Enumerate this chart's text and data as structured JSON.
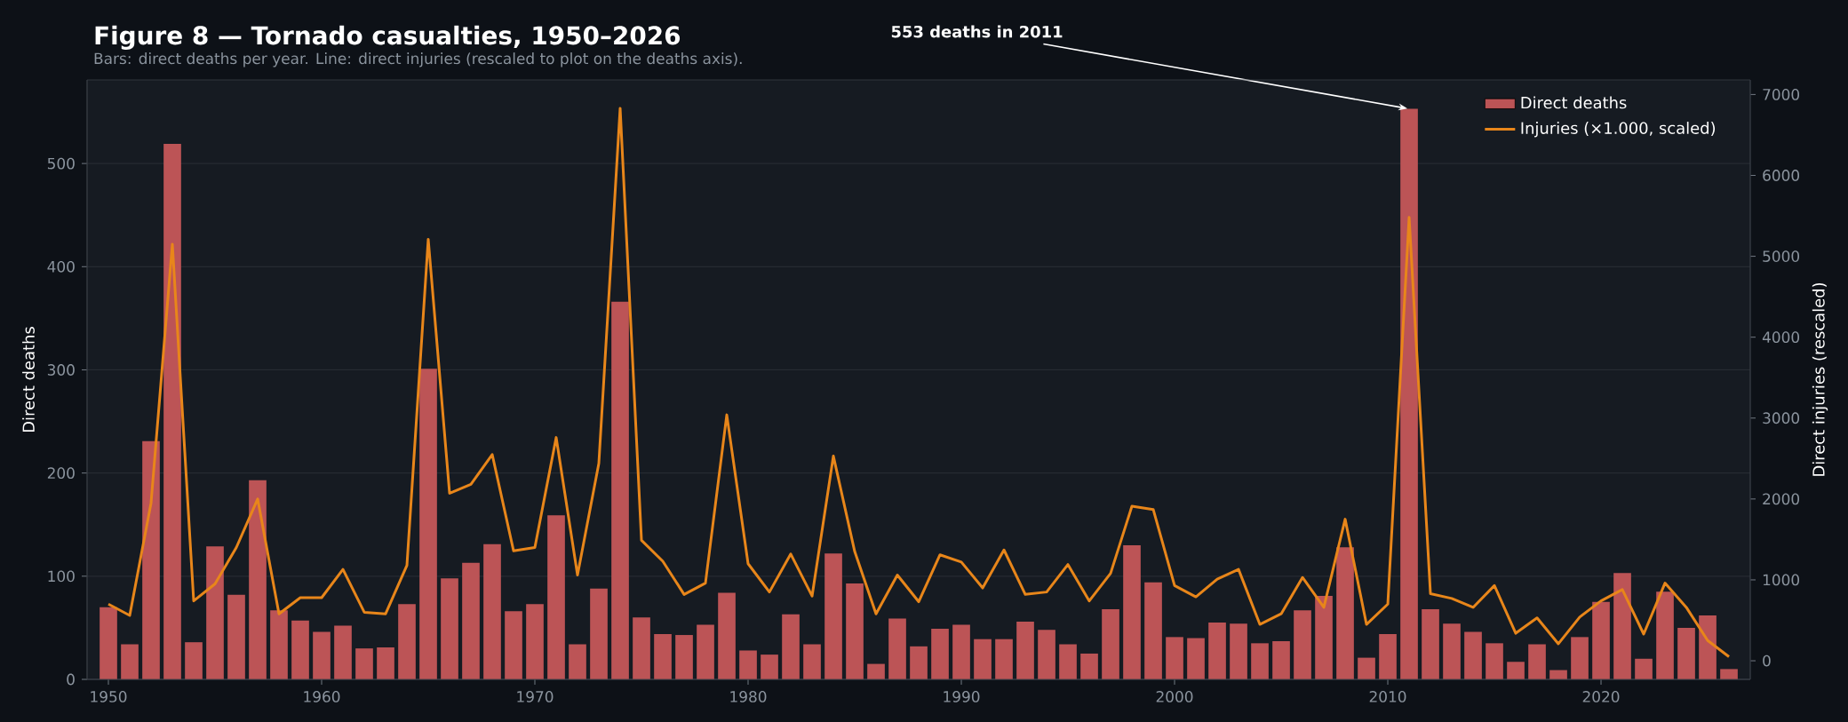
{
  "chart_data": {
    "type": "bar",
    "title": "Figure 8 — Tornado casualties, 1950–2026",
    "subtitle": "Bars: direct deaths per year. Line: direct injuries (rescaled to plot on the deaths axis).",
    "ylabel": "Direct deaths",
    "y2label": "Direct injuries (rescaled)",
    "x": [
      1950,
      1951,
      1952,
      1953,
      1954,
      1955,
      1956,
      1957,
      1958,
      1959,
      1960,
      1961,
      1962,
      1963,
      1964,
      1965,
      1966,
      1967,
      1968,
      1969,
      1970,
      1971,
      1972,
      1973,
      1974,
      1975,
      1976,
      1977,
      1978,
      1979,
      1980,
      1981,
      1982,
      1983,
      1984,
      1985,
      1986,
      1987,
      1988,
      1989,
      1990,
      1991,
      1992,
      1993,
      1994,
      1995,
      1996,
      1997,
      1998,
      1999,
      2000,
      2001,
      2002,
      2003,
      2004,
      2005,
      2006,
      2007,
      2008,
      2009,
      2010,
      2011,
      2012,
      2013,
      2014,
      2015,
      2016,
      2017,
      2018,
      2019,
      2020,
      2021,
      2022,
      2023,
      2024,
      2025,
      2026
    ],
    "series": [
      {
        "name": "Direct deaths",
        "color": "#bc5456",
        "values": [
          70,
          34,
          231,
          519,
          36,
          129,
          82,
          193,
          67,
          57,
          46,
          52,
          30,
          31,
          73,
          301,
          98,
          113,
          131,
          66,
          73,
          159,
          34,
          88,
          366,
          60,
          44,
          43,
          53,
          84,
          28,
          24,
          63,
          34,
          122,
          93,
          15,
          59,
          32,
          49,
          53,
          39,
          39,
          56,
          48,
          34,
          25,
          68,
          130,
          94,
          41,
          40,
          55,
          54,
          35,
          37,
          67,
          81,
          128,
          21,
          44,
          553,
          68,
          54,
          46,
          35,
          17,
          34,
          9,
          41,
          75,
          103,
          20,
          85,
          50,
          62,
          10
        ]
      },
      {
        "name": "Injuries (×1.000, scaled)",
        "type": "line",
        "axis": "y2",
        "color": "#e8861a",
        "values": [
          700,
          560,
          1950,
          5150,
          740,
          950,
          1400,
          2000,
          580,
          780,
          780,
          1130,
          600,
          580,
          1180,
          5210,
          2070,
          2180,
          2550,
          1360,
          1400,
          2760,
          1060,
          2440,
          6830,
          1490,
          1230,
          820,
          960,
          3040,
          1200,
          850,
          1320,
          800,
          2530,
          1350,
          580,
          1060,
          730,
          1310,
          1220,
          900,
          1370,
          820,
          850,
          1190,
          740,
          1080,
          1910,
          1870,
          930,
          790,
          1010,
          1130,
          450,
          580,
          1030,
          660,
          1750,
          450,
          700,
          5480,
          830,
          770,
          660,
          930,
          340,
          530,
          210,
          540,
          740,
          880,
          330,
          960,
          660,
          250,
          50
        ]
      }
    ],
    "xlim": [
      1949,
      2027
    ],
    "xticks": [
      1950,
      1960,
      1970,
      1980,
      1990,
      2000,
      2010,
      2020
    ],
    "ylim": [
      0,
      581
    ],
    "yticks": [
      0,
      100,
      200,
      300,
      400,
      500
    ],
    "y2lim": [
      -230,
      7180
    ],
    "y2ticks": [
      0,
      1000,
      2000,
      3000,
      4000,
      5000,
      6000,
      7000
    ],
    "grid": "y",
    "legend": "top right",
    "annotations": [
      {
        "text": "553 deaths in 2011",
        "x": 2011,
        "y": 553
      }
    ]
  }
}
